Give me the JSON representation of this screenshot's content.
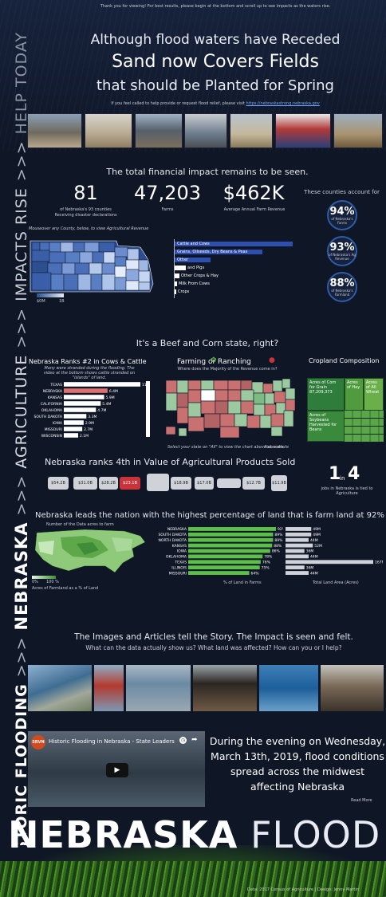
{
  "header": {
    "notice": "Thank you for viewing! For best results, please begin at the bottom and scroll up to see impacts as the waters rise.",
    "line1": "Although flood waters have Receded",
    "line2": "Sand now Covers Fields",
    "line3": "that should be Planted for Spring",
    "relief_text": "If you feel called to help provide or request flood relief, please visit",
    "relief_link": "https://nebraskastrong.nebraska.gov"
  },
  "side_banner": {
    "help": "HELP TODAY",
    "impacts": "IMPACTS RISE",
    "agriculture": "AGRICULTURE",
    "nebraska": "NEBRASKA",
    "historic": "HISTORIC FLOODING",
    "arrow": ">>>"
  },
  "impact": {
    "title": "The total financial impact remains to be seen.",
    "kpi1_value": "81",
    "kpi1_label_a": "of Nebraska's 93 counties",
    "kpi1_label_b": "Receiving disaster declarations",
    "kpi2_value": "47,203",
    "kpi2_label": "Farms",
    "kpi3_value": "$462K",
    "kpi3_label": "Average Annual Farm Revenue",
    "counties_title": "These counties account for",
    "hover_hint": "Mouseover any County, below, to view Agricultural Revenue",
    "legend_min": "$0M",
    "legend_max": "1B",
    "circles": [
      {
        "pct": "94%",
        "label": "of Nebraska's Farms"
      },
      {
        "pct": "93%",
        "label": "of Nebraska's Ag Revenue"
      },
      {
        "pct": "88%",
        "label": "of Nebraska's Farmland"
      }
    ],
    "revenue_bars": [
      "Cattle and Cows",
      "Grains, Oilseeds, Dry Beans & Peas",
      "Other",
      "and Pigs",
      "Other Crops & Hay",
      "Milk From Cows",
      "Crops"
    ]
  },
  "beef_corn": {
    "title": "It's a Beef and Corn state, right?",
    "cattle_title": "Nebraska Ranks #2 in Cows & Cattle",
    "cattle_sub": "Many were stranded during the flooding. The video at the bottom shows cattle stranded on \"islands\" of land.",
    "farming_title": "Farming or Ranching",
    "farming_sub": "Where does the Majority of the Revenue come in?",
    "cropland_title": "Cropland Composition",
    "select_hint": "Select your state on \"All\" to view the chart above as a whole",
    "map_label": "Nebraska",
    "crop_cells": [
      {
        "text": "Acres of Corn for Grain 87,209,373"
      },
      {
        "text": "Acres of Hay"
      },
      {
        "text": "Acres of All Wheat"
      },
      {
        "text": "Acres of Soybeans Harvested for Beans"
      }
    ]
  },
  "rank4": {
    "title": "Nebraska ranks 4th in Value of Agricultural Products Sold",
    "states": [
      "$54.2B",
      "$31.0B",
      "$28.2B",
      "$23.1B",
      "",
      "$18.9B",
      "$17.0B",
      "",
      "$12.7B",
      "$11.9B"
    ],
    "one_in": "1",
    "in_word": "in",
    "four": "4",
    "jobs_text": "jobs in Nebraska is tied to Agriculture"
  },
  "farmland": {
    "title": "Nebraska leads the nation with the highest percentage of land that is farm land at 92%",
    "map_sub": "Number of the Data acres to farm",
    "legend_a": "0%",
    "legend_b": "100 %",
    "legend_label": "Acres of Farmland as a % of Land",
    "pct_axis": "% of Land in Farms",
    "area_axis": "Total Land Area (Acres)"
  },
  "story": {
    "title": "The Images and Articles tell the Story. The Impact is seen and felt.",
    "subtitle": "What can the data actually show us? What land was affected? How can you or I help?",
    "video_logo": "SRVN",
    "video_title": "Historic Flooding in Nebraska - State Leaders Sur...",
    "evening_text": "During the evening on Wednesday, March 13th, 2019, flood conditions spread across the midwest affecting Nebraska",
    "read_more": "Read More"
  },
  "footer": {
    "title_bold": "NEBRASKA",
    "title_light": "FLOOD",
    "credit": "Data: 2017 Census of Agriculture | Design: Jenny Martin"
  },
  "chart_data": [
    {
      "type": "bar",
      "title": "Nebraska Ranks #2 in Cows & Cattle",
      "categories": [
        "TEXAS",
        "NEBRASKA",
        "KANSAS",
        "CALIFORNIA",
        "OKLAHOMA",
        "SOUTH DAKOTA",
        "IOWA",
        "MISSOURI",
        "WISCONSIN"
      ],
      "values": [
        11.2,
        6.4,
        5.9,
        5.4,
        4.7,
        3.3,
        2.9,
        2.7,
        2.1
      ],
      "labels": [
        "11.2M",
        "6.4M",
        "5.9M",
        "5.4M",
        "4.7M",
        "3.3M",
        "2.9M",
        "2.7M",
        "2.1M"
      ],
      "highlight": "NEBRASKA",
      "colors": {
        "default": "#ffffff",
        "highlight": "#e07070"
      }
    },
    {
      "type": "bar",
      "title": "Nebraska leads the nation with the highest percentage of land that is farm land at 92%",
      "xlabel": "% of Land in Farms",
      "categories": [
        "NEBRASKA",
        "SOUTH DAKOTA",
        "NORTH DAKOTA",
        "KANSAS",
        "IOWA",
        "OKLAHOMA",
        "TEXAS",
        "ILLINOIS",
        "MISSOURI"
      ],
      "values": [
        92,
        89,
        89,
        88,
        86,
        78,
        76,
        75,
        64
      ],
      "labels": [
        "92%",
        "89%",
        "89%",
        "88%",
        "86%",
        "78%",
        "76%",
        "75%",
        "64%"
      ],
      "colors": {
        "bars": "#5bbf4a"
      }
    },
    {
      "type": "bar",
      "xlabel": "Total Land Area (Acres)",
      "categories": [
        "NEBRASKA",
        "SOUTH DAKOTA",
        "NORTH DAKOTA",
        "KANSAS",
        "IOWA",
        "OKLAHOMA",
        "TEXAS",
        "ILLINOIS",
        "MISSOURI"
      ],
      "values": [
        49,
        49,
        44,
        52,
        36,
        44,
        167,
        36,
        44
      ],
      "labels": [
        "49M",
        "49M",
        "44M",
        "52M",
        "36M",
        "44M",
        "167M",
        "36M",
        "44M"
      ],
      "colors": {
        "bars": "#cfd2d8"
      }
    }
  ]
}
